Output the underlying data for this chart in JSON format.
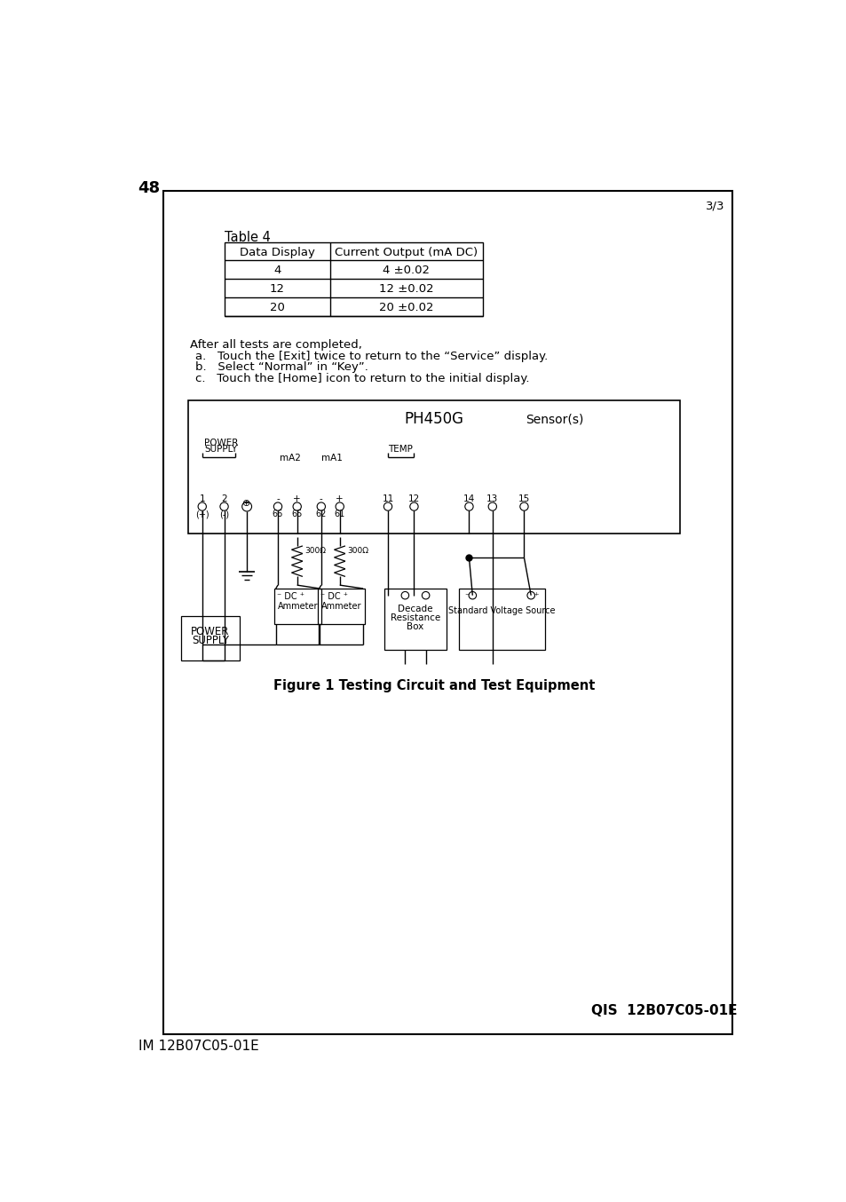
{
  "page_number": "48",
  "corner_label": "3/3",
  "table_title": "Table 4",
  "table_headers": [
    "Data Display",
    "Current Output (mA DC)"
  ],
  "table_rows": [
    [
      "4",
      "4 ±0.02"
    ],
    [
      "12",
      "12 ±0.02"
    ],
    [
      "20",
      "20 ±0.02"
    ]
  ],
  "after_text": "After all tests are completed,",
  "list_items": [
    "a.   Touch the [Exit] twice to return to the “Service” display.",
    "b.   Select “Normal” in “Key”.",
    "c.   Touch the [Home] icon to return to the initial display."
  ],
  "figure_caption": "Figure 1 Testing Circuit and Test Equipment",
  "bottom_label": "QIS  12B07C05-01E",
  "footer_label": "IM 12B07C05-01E",
  "bg_color": "#ffffff"
}
